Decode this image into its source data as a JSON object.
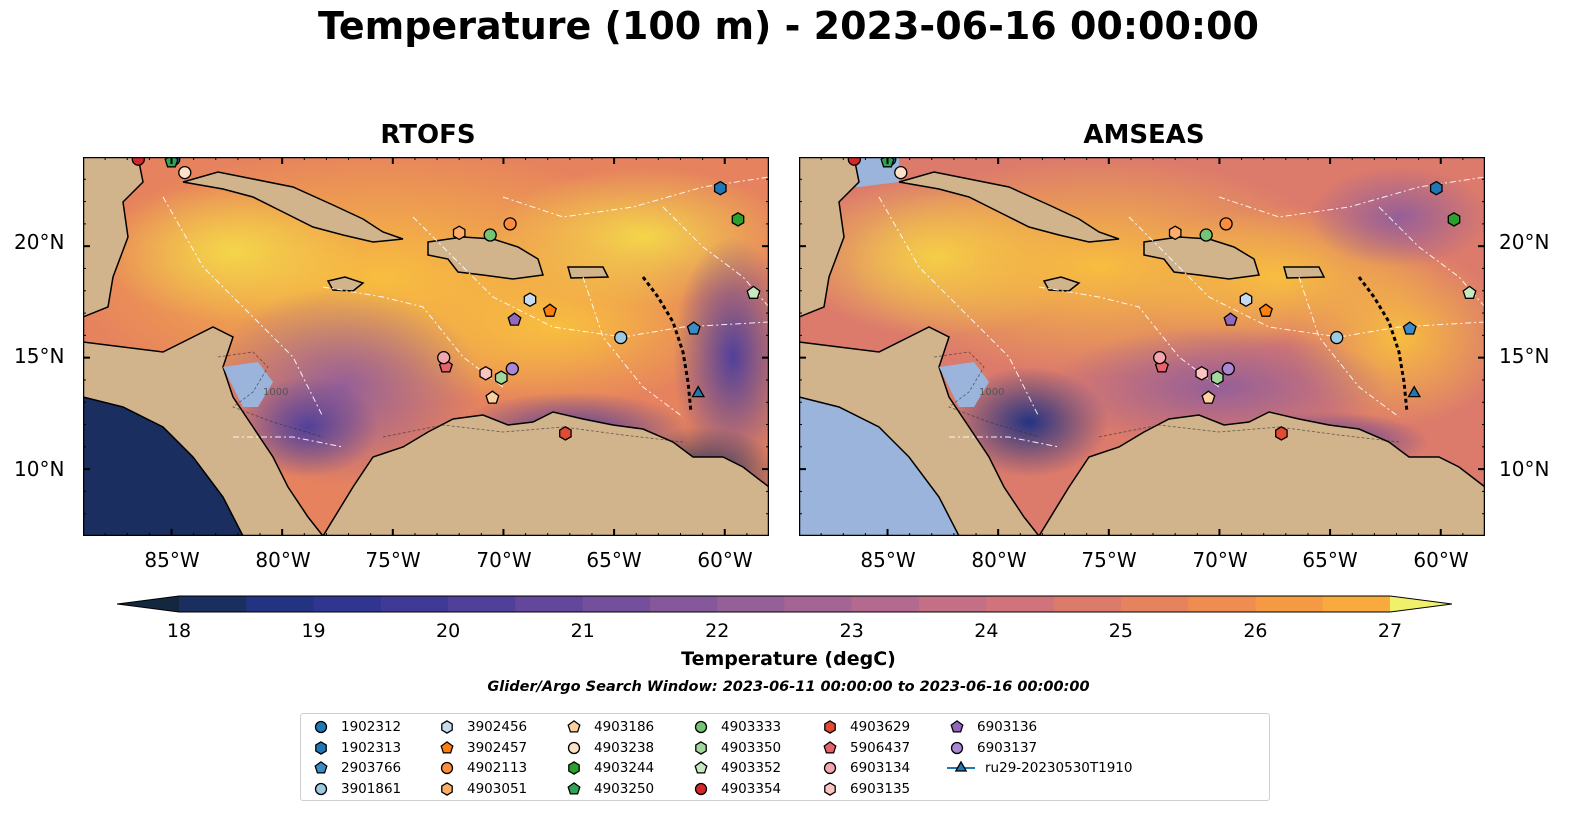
{
  "figure": {
    "title": "Temperature (100 m) - 2023-06-16 00:00:00",
    "search_window": "Glider/Argo Search Window: 2023-06-11 00:00:00 to 2023-06-16 00:00:00"
  },
  "panels": [
    {
      "title": "RTOFS",
      "bathy_label": "1000"
    },
    {
      "title": "AMSEAS",
      "bathy_label": "1000"
    }
  ],
  "axes": {
    "lon_range": [
      -89,
      -58
    ],
    "lat_range": [
      7,
      24
    ],
    "x_ticks": [
      -85,
      -80,
      -75,
      -70,
      -65,
      -60
    ],
    "x_tick_labels": [
      "85°W",
      "80°W",
      "75°W",
      "70°W",
      "65°W",
      "60°W"
    ],
    "y_ticks": [
      20,
      15,
      10
    ],
    "y_tick_labels": [
      "20°N",
      "15°N",
      "10°N"
    ]
  },
  "colorbar": {
    "label": "Temperature (degC)",
    "min": 18,
    "max": 27,
    "step": 0.5,
    "tick_labels": [
      "18",
      "19",
      "20",
      "21",
      "22",
      "23",
      "24",
      "25",
      "26",
      "27"
    ],
    "colors": [
      "#13283f",
      "#1a2e60",
      "#233382",
      "#2f3590",
      "#3f3a96",
      "#51409a",
      "#62479b",
      "#734f9c",
      "#84589b",
      "#955f98",
      "#a56594",
      "#b46a8e",
      "#c36f85",
      "#d0737a",
      "#dc7a6c",
      "#e6825e",
      "#ef8c4f",
      "#f59a43",
      "#f8ab3c",
      "#f8be3f",
      "#f4d64a",
      "#f0f06a"
    ],
    "extend": "both"
  },
  "map_colors": {
    "land": "#d2b48c",
    "water": "#9ab4dc",
    "coast": "#000000"
  },
  "platforms": [
    {
      "id": "1902312",
      "marker": "circle",
      "color": "#1f77b4",
      "lon": -84.9,
      "lat": 23.9
    },
    {
      "id": "1902313",
      "marker": "hexagon",
      "color": "#1f77b4",
      "lon": -60.2,
      "lat": 22.6
    },
    {
      "id": "2903766",
      "marker": "pentagon",
      "color": "#3a8cc8",
      "lon": -61.4,
      "lat": 16.3
    },
    {
      "id": "3901861",
      "marker": "circle",
      "color": "#9ecae1",
      "lon": -64.7,
      "lat": 15.9
    },
    {
      "id": "3902456",
      "marker": "hexagon",
      "color": "#c6dbef",
      "lon": -68.8,
      "lat": 17.6
    },
    {
      "id": "3902457",
      "marker": "pentagon",
      "color": "#fd7f0e",
      "lon": -67.9,
      "lat": 17.1
    },
    {
      "id": "4902113",
      "marker": "circle",
      "color": "#fd8d3c",
      "lon": -69.7,
      "lat": 21.0
    },
    {
      "id": "4903051",
      "marker": "hexagon",
      "color": "#fdae6b",
      "lon": -72.0,
      "lat": 20.6
    },
    {
      "id": "4903186",
      "marker": "pentagon",
      "color": "#fdd0a2",
      "lon": -70.5,
      "lat": 13.2
    },
    {
      "id": "4903238",
      "marker": "circle",
      "color": "#fde0c8",
      "lon": -84.4,
      "lat": 23.3
    },
    {
      "id": "4903244",
      "marker": "hexagon",
      "color": "#2ca02c",
      "lon": -59.4,
      "lat": 21.2
    },
    {
      "id": "4903250",
      "marker": "pentagon",
      "color": "#31a354",
      "lon": -85.0,
      "lat": 23.8
    },
    {
      "id": "4903333",
      "marker": "circle",
      "color": "#74c476",
      "lon": -70.6,
      "lat": 20.5
    },
    {
      "id": "4903350",
      "marker": "hexagon",
      "color": "#a1d99b",
      "lon": -70.1,
      "lat": 14.1
    },
    {
      "id": "4903352",
      "marker": "pentagon",
      "color": "#c7e9c0",
      "lon": -58.7,
      "lat": 17.9
    },
    {
      "id": "4903354",
      "marker": "circle",
      "color": "#d62728",
      "lon": -86.5,
      "lat": 23.9
    },
    {
      "id": "4903629",
      "marker": "hexagon",
      "color": "#e34a33",
      "lon": -67.2,
      "lat": 11.6
    },
    {
      "id": "5906437",
      "marker": "pentagon",
      "color": "#e7626a",
      "lon": -72.6,
      "lat": 14.6
    },
    {
      "id": "6903134",
      "marker": "circle",
      "color": "#f4a6ae",
      "lon": -72.7,
      "lat": 15.0
    },
    {
      "id": "6903135",
      "marker": "hexagon",
      "color": "#fcc5c0",
      "lon": -70.8,
      "lat": 14.3
    },
    {
      "id": "6903136",
      "marker": "pentagon",
      "color": "#9467bd",
      "lon": -69.5,
      "lat": 16.7
    },
    {
      "id": "6903137",
      "marker": "circle",
      "color": "#a987d2",
      "lon": -69.6,
      "lat": 14.5
    },
    {
      "id": "ru29-20230530T1910",
      "marker": "triangle",
      "color": "#1f77b4",
      "lon": -61.2,
      "lat": 13.4,
      "line": true
    }
  ]
}
